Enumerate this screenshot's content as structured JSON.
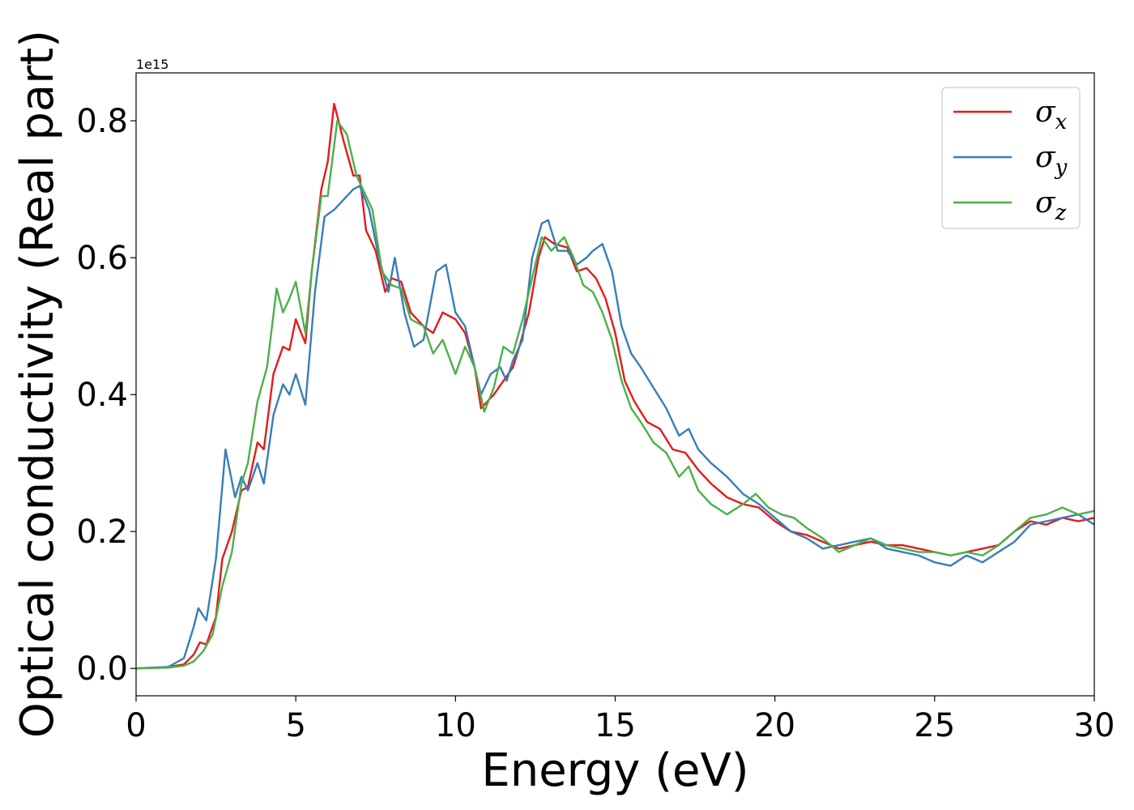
{
  "chart_data": {
    "type": "line",
    "title": "",
    "xlabel": "Energy (eV)",
    "ylabel": "Optical conductivity (Real part)",
    "y_offset_text": "1e15",
    "xlim": [
      0,
      30
    ],
    "ylim": [
      -0.04,
      0.87
    ],
    "x_ticks": [
      0,
      5,
      10,
      15,
      20,
      25,
      30
    ],
    "x_tick_labels": [
      "0",
      "5",
      "10",
      "15",
      "20",
      "25",
      "30"
    ],
    "y_ticks": [
      0.0,
      0.2,
      0.4,
      0.6,
      0.8
    ],
    "y_tick_labels": [
      "0.0",
      "0.2",
      "0.4",
      "0.6",
      "0.8"
    ],
    "grid": false,
    "legend_position": "top-right",
    "series": [
      {
        "name": "σx",
        "symbol": "σ",
        "subscript": "x",
        "color": "#e41a1c",
        "points": [
          [
            0,
            0
          ],
          [
            1,
            0.002
          ],
          [
            1.5,
            0.006
          ],
          [
            1.8,
            0.02
          ],
          [
            2.0,
            0.038
          ],
          [
            2.2,
            0.035
          ],
          [
            2.5,
            0.075
          ],
          [
            2.7,
            0.16
          ],
          [
            3.0,
            0.2
          ],
          [
            3.3,
            0.26
          ],
          [
            3.5,
            0.265
          ],
          [
            3.8,
            0.33
          ],
          [
            4.0,
            0.32
          ],
          [
            4.3,
            0.43
          ],
          [
            4.6,
            0.47
          ],
          [
            4.8,
            0.465
          ],
          [
            5.0,
            0.51
          ],
          [
            5.3,
            0.475
          ],
          [
            5.5,
            0.58
          ],
          [
            5.8,
            0.7
          ],
          [
            6.0,
            0.74
          ],
          [
            6.2,
            0.825
          ],
          [
            6.5,
            0.77
          ],
          [
            6.8,
            0.72
          ],
          [
            7.0,
            0.72
          ],
          [
            7.2,
            0.64
          ],
          [
            7.5,
            0.61
          ],
          [
            7.8,
            0.55
          ],
          [
            8.0,
            0.57
          ],
          [
            8.3,
            0.565
          ],
          [
            8.6,
            0.52
          ],
          [
            9.0,
            0.5
          ],
          [
            9.3,
            0.49
          ],
          [
            9.6,
            0.52
          ],
          [
            10.0,
            0.51
          ],
          [
            10.3,
            0.49
          ],
          [
            10.6,
            0.44
          ],
          [
            10.8,
            0.38
          ],
          [
            11.2,
            0.4
          ],
          [
            11.5,
            0.42
          ],
          [
            11.8,
            0.44
          ],
          [
            12.0,
            0.47
          ],
          [
            12.3,
            0.52
          ],
          [
            12.6,
            0.6
          ],
          [
            12.8,
            0.63
          ],
          [
            13.1,
            0.62
          ],
          [
            13.5,
            0.615
          ],
          [
            13.8,
            0.58
          ],
          [
            14.1,
            0.585
          ],
          [
            14.4,
            0.57
          ],
          [
            14.7,
            0.54
          ],
          [
            15.0,
            0.49
          ],
          [
            15.3,
            0.42
          ],
          [
            15.6,
            0.39
          ],
          [
            16.0,
            0.36
          ],
          [
            16.4,
            0.35
          ],
          [
            16.8,
            0.32
          ],
          [
            17.2,
            0.315
          ],
          [
            17.6,
            0.29
          ],
          [
            18.0,
            0.27
          ],
          [
            18.5,
            0.25
          ],
          [
            19.0,
            0.24
          ],
          [
            19.5,
            0.235
          ],
          [
            20.0,
            0.215
          ],
          [
            20.5,
            0.2
          ],
          [
            21.0,
            0.195
          ],
          [
            21.5,
            0.185
          ],
          [
            22.0,
            0.175
          ],
          [
            22.5,
            0.18
          ],
          [
            23.0,
            0.185
          ],
          [
            23.5,
            0.18
          ],
          [
            24.0,
            0.18
          ],
          [
            24.5,
            0.175
          ],
          [
            25.0,
            0.17
          ],
          [
            25.5,
            0.165
          ],
          [
            26.0,
            0.17
          ],
          [
            26.5,
            0.175
          ],
          [
            27.0,
            0.18
          ],
          [
            27.5,
            0.2
          ],
          [
            28.0,
            0.215
          ],
          [
            28.5,
            0.21
          ],
          [
            29.0,
            0.22
          ],
          [
            29.5,
            0.215
          ],
          [
            30.0,
            0.22
          ]
        ]
      },
      {
        "name": "σy",
        "symbol": "σ",
        "subscript": "y",
        "color": "#377eb8",
        "points": [
          [
            0,
            0
          ],
          [
            1,
            0.002
          ],
          [
            1.5,
            0.015
          ],
          [
            1.8,
            0.06
          ],
          [
            1.95,
            0.088
          ],
          [
            2.2,
            0.07
          ],
          [
            2.5,
            0.16
          ],
          [
            2.8,
            0.32
          ],
          [
            3.1,
            0.25
          ],
          [
            3.3,
            0.28
          ],
          [
            3.5,
            0.26
          ],
          [
            3.8,
            0.3
          ],
          [
            4.0,
            0.27
          ],
          [
            4.3,
            0.37
          ],
          [
            4.6,
            0.415
          ],
          [
            4.8,
            0.4
          ],
          [
            5.0,
            0.43
          ],
          [
            5.3,
            0.385
          ],
          [
            5.6,
            0.55
          ],
          [
            5.9,
            0.66
          ],
          [
            6.2,
            0.67
          ],
          [
            6.5,
            0.685
          ],
          [
            6.8,
            0.7
          ],
          [
            7.0,
            0.705
          ],
          [
            7.3,
            0.67
          ],
          [
            7.6,
            0.6
          ],
          [
            7.9,
            0.55
          ],
          [
            8.1,
            0.6
          ],
          [
            8.4,
            0.52
          ],
          [
            8.7,
            0.47
          ],
          [
            9.0,
            0.48
          ],
          [
            9.4,
            0.58
          ],
          [
            9.7,
            0.59
          ],
          [
            10.0,
            0.52
          ],
          [
            10.3,
            0.5
          ],
          [
            10.6,
            0.44
          ],
          [
            10.8,
            0.4
          ],
          [
            11.1,
            0.43
          ],
          [
            11.4,
            0.44
          ],
          [
            11.6,
            0.42
          ],
          [
            11.8,
            0.45
          ],
          [
            12.1,
            0.48
          ],
          [
            12.4,
            0.6
          ],
          [
            12.7,
            0.65
          ],
          [
            12.9,
            0.655
          ],
          [
            13.2,
            0.61
          ],
          [
            13.5,
            0.61
          ],
          [
            13.8,
            0.59
          ],
          [
            14.1,
            0.6
          ],
          [
            14.3,
            0.61
          ],
          [
            14.6,
            0.62
          ],
          [
            14.9,
            0.58
          ],
          [
            15.2,
            0.5
          ],
          [
            15.5,
            0.46
          ],
          [
            15.8,
            0.44
          ],
          [
            16.2,
            0.41
          ],
          [
            16.6,
            0.38
          ],
          [
            17.0,
            0.34
          ],
          [
            17.3,
            0.35
          ],
          [
            17.6,
            0.32
          ],
          [
            18.0,
            0.3
          ],
          [
            18.5,
            0.28
          ],
          [
            19.0,
            0.255
          ],
          [
            19.5,
            0.24
          ],
          [
            20.0,
            0.22
          ],
          [
            20.5,
            0.2
          ],
          [
            21.0,
            0.19
          ],
          [
            21.5,
            0.175
          ],
          [
            22.0,
            0.18
          ],
          [
            22.5,
            0.185
          ],
          [
            23.0,
            0.19
          ],
          [
            23.5,
            0.175
          ],
          [
            24.0,
            0.17
          ],
          [
            24.5,
            0.165
          ],
          [
            25.0,
            0.155
          ],
          [
            25.5,
            0.15
          ],
          [
            26.0,
            0.165
          ],
          [
            26.5,
            0.155
          ],
          [
            27.0,
            0.17
          ],
          [
            27.5,
            0.185
          ],
          [
            28.0,
            0.21
          ],
          [
            28.5,
            0.215
          ],
          [
            29.0,
            0.22
          ],
          [
            29.5,
            0.225
          ],
          [
            30.0,
            0.21
          ]
        ]
      },
      {
        "name": "σz",
        "symbol": "σ",
        "subscript": "z",
        "color": "#4daf4a",
        "points": [
          [
            0,
            0
          ],
          [
            1,
            0.001
          ],
          [
            1.5,
            0.004
          ],
          [
            1.8,
            0.01
          ],
          [
            2.1,
            0.025
          ],
          [
            2.4,
            0.05
          ],
          [
            2.7,
            0.12
          ],
          [
            3.0,
            0.17
          ],
          [
            3.3,
            0.27
          ],
          [
            3.5,
            0.3
          ],
          [
            3.8,
            0.39
          ],
          [
            4.1,
            0.44
          ],
          [
            4.4,
            0.555
          ],
          [
            4.6,
            0.52
          ],
          [
            4.8,
            0.54
          ],
          [
            5.0,
            0.565
          ],
          [
            5.3,
            0.49
          ],
          [
            5.5,
            0.58
          ],
          [
            5.8,
            0.69
          ],
          [
            6.0,
            0.69
          ],
          [
            6.3,
            0.8
          ],
          [
            6.6,
            0.78
          ],
          [
            6.9,
            0.72
          ],
          [
            7.1,
            0.7
          ],
          [
            7.4,
            0.67
          ],
          [
            7.7,
            0.58
          ],
          [
            8.0,
            0.56
          ],
          [
            8.3,
            0.555
          ],
          [
            8.6,
            0.51
          ],
          [
            9.0,
            0.5
          ],
          [
            9.3,
            0.46
          ],
          [
            9.6,
            0.48
          ],
          [
            10.0,
            0.43
          ],
          [
            10.3,
            0.47
          ],
          [
            10.6,
            0.44
          ],
          [
            10.9,
            0.375
          ],
          [
            11.2,
            0.41
          ],
          [
            11.5,
            0.47
          ],
          [
            11.8,
            0.46
          ],
          [
            12.1,
            0.51
          ],
          [
            12.4,
            0.57
          ],
          [
            12.7,
            0.63
          ],
          [
            13.0,
            0.61
          ],
          [
            13.4,
            0.63
          ],
          [
            13.7,
            0.6
          ],
          [
            14.0,
            0.56
          ],
          [
            14.3,
            0.55
          ],
          [
            14.6,
            0.52
          ],
          [
            14.9,
            0.48
          ],
          [
            15.2,
            0.42
          ],
          [
            15.5,
            0.38
          ],
          [
            15.8,
            0.36
          ],
          [
            16.2,
            0.33
          ],
          [
            16.6,
            0.315
          ],
          [
            17.0,
            0.28
          ],
          [
            17.3,
            0.295
          ],
          [
            17.6,
            0.26
          ],
          [
            18.0,
            0.24
          ],
          [
            18.5,
            0.225
          ],
          [
            19.0,
            0.24
          ],
          [
            19.4,
            0.255
          ],
          [
            19.8,
            0.235
          ],
          [
            20.2,
            0.225
          ],
          [
            20.6,
            0.22
          ],
          [
            21.0,
            0.205
          ],
          [
            21.5,
            0.19
          ],
          [
            22.0,
            0.17
          ],
          [
            22.5,
            0.18
          ],
          [
            23.0,
            0.19
          ],
          [
            23.5,
            0.18
          ],
          [
            24.0,
            0.175
          ],
          [
            24.5,
            0.17
          ],
          [
            25.0,
            0.17
          ],
          [
            25.5,
            0.165
          ],
          [
            26.0,
            0.17
          ],
          [
            26.5,
            0.165
          ],
          [
            27.0,
            0.18
          ],
          [
            27.5,
            0.2
          ],
          [
            28.0,
            0.22
          ],
          [
            28.5,
            0.225
          ],
          [
            29.0,
            0.235
          ],
          [
            29.5,
            0.225
          ],
          [
            30.0,
            0.23
          ]
        ]
      }
    ]
  }
}
